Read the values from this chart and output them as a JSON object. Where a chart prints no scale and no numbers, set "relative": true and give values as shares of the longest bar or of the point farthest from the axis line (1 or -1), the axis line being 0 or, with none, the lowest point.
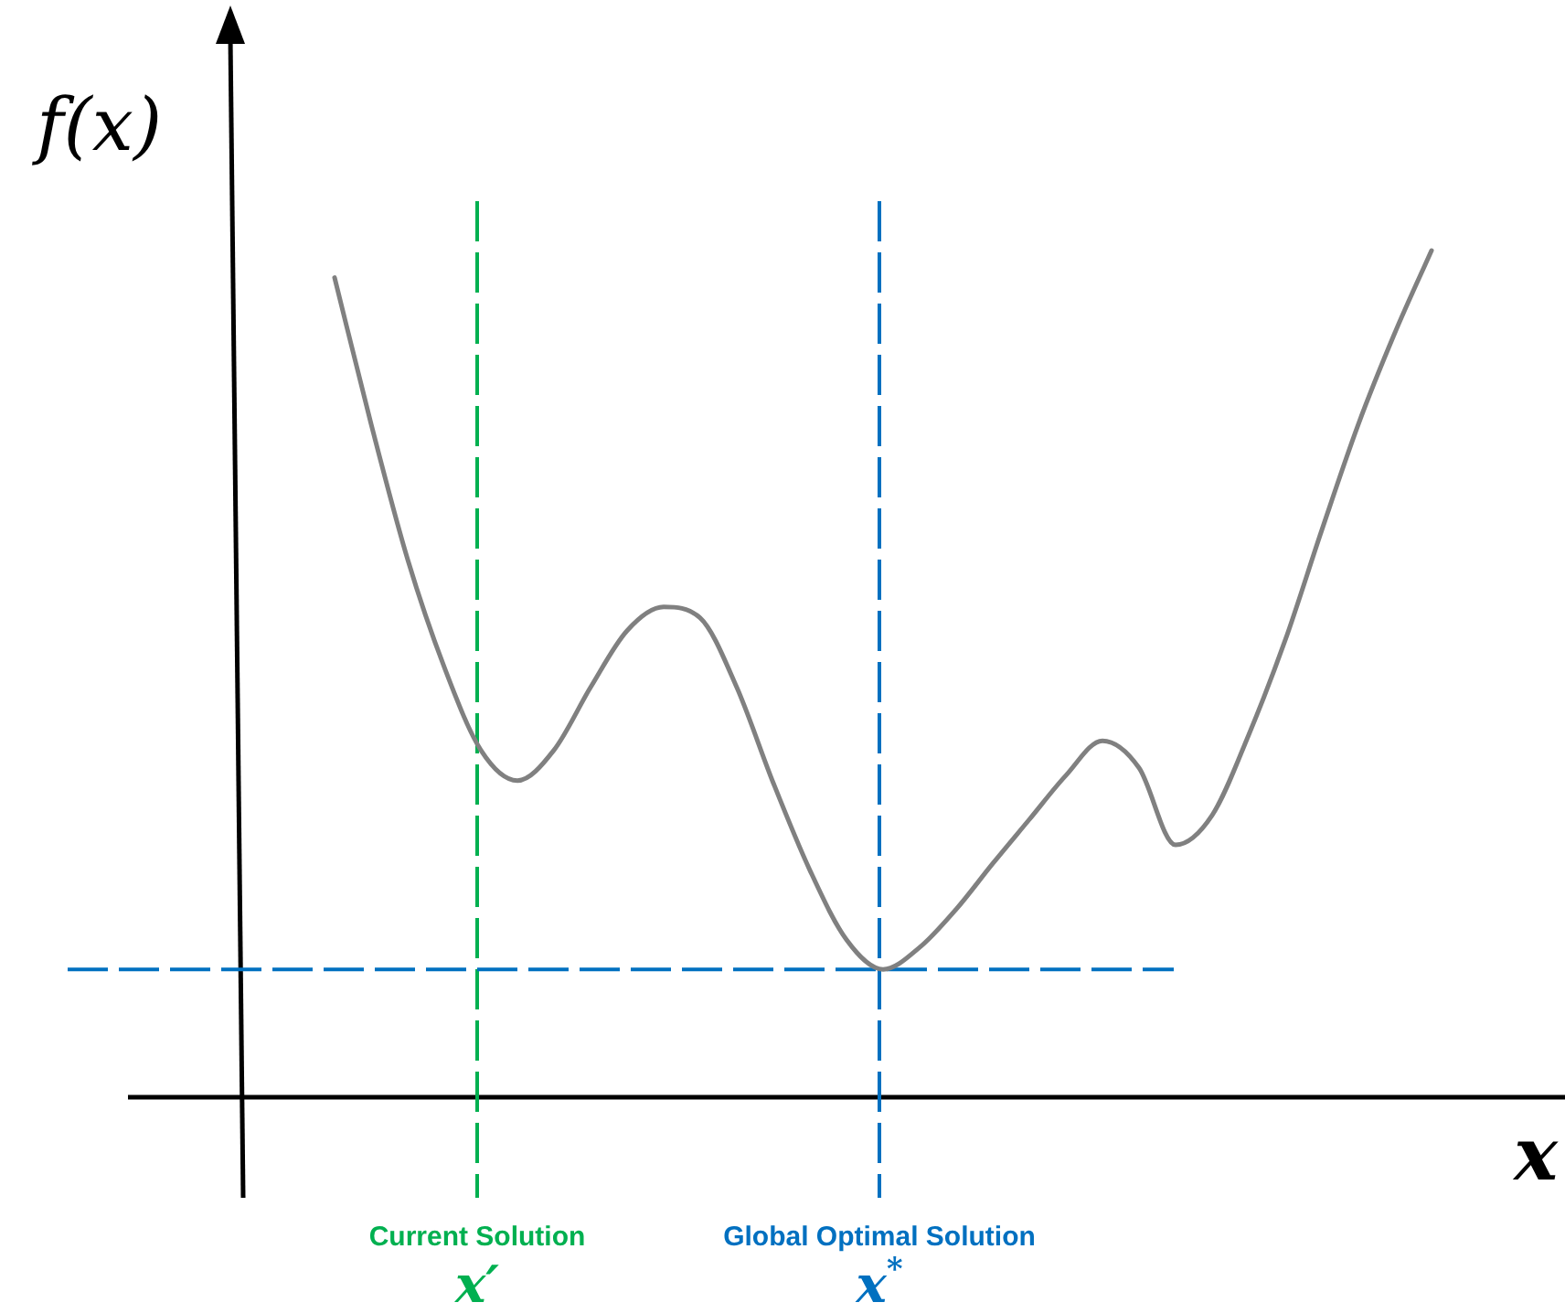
{
  "chart_data": {
    "type": "line",
    "relative": true,
    "xlabel": "x",
    "ylabel": "f(x)",
    "categories": [
      null,
      null,
      null,
      null,
      null,
      null,
      null,
      null,
      null,
      null,
      null,
      null,
      null,
      null,
      null,
      null,
      null,
      null,
      null,
      null,
      null,
      null,
      null,
      null,
      null,
      null,
      null,
      null,
      null,
      null,
      null
    ],
    "series": [
      {
        "color": "#808080",
        "values": [
          0.968,
          0.795,
          0.635,
          0.508,
          0.41,
          0.374,
          0.41,
          0.484,
          0.551,
          0.579,
          0.566,
          0.484,
          0.371,
          0.268,
          0.186,
          0.151,
          0.177,
          0.222,
          0.276,
          0.328,
          0.38,
          0.421,
          0.389,
          0.298,
          0.333,
          0.428,
          0.54,
          0.67,
          0.795,
          0.903,
          1
        ]
      }
    ],
    "ref_lines": [
      {
        "axis": "y",
        "value": 0.151,
        "color": "#0070c0",
        "line_style": "dashed"
      }
    ],
    "annotations": [
      "Current Solution",
      "x′",
      "Global Optimal Solution",
      "x$^{*}$"
    ],
    "legend": false,
    "marker": "none",
    "line_style": "solid"
  }
}
